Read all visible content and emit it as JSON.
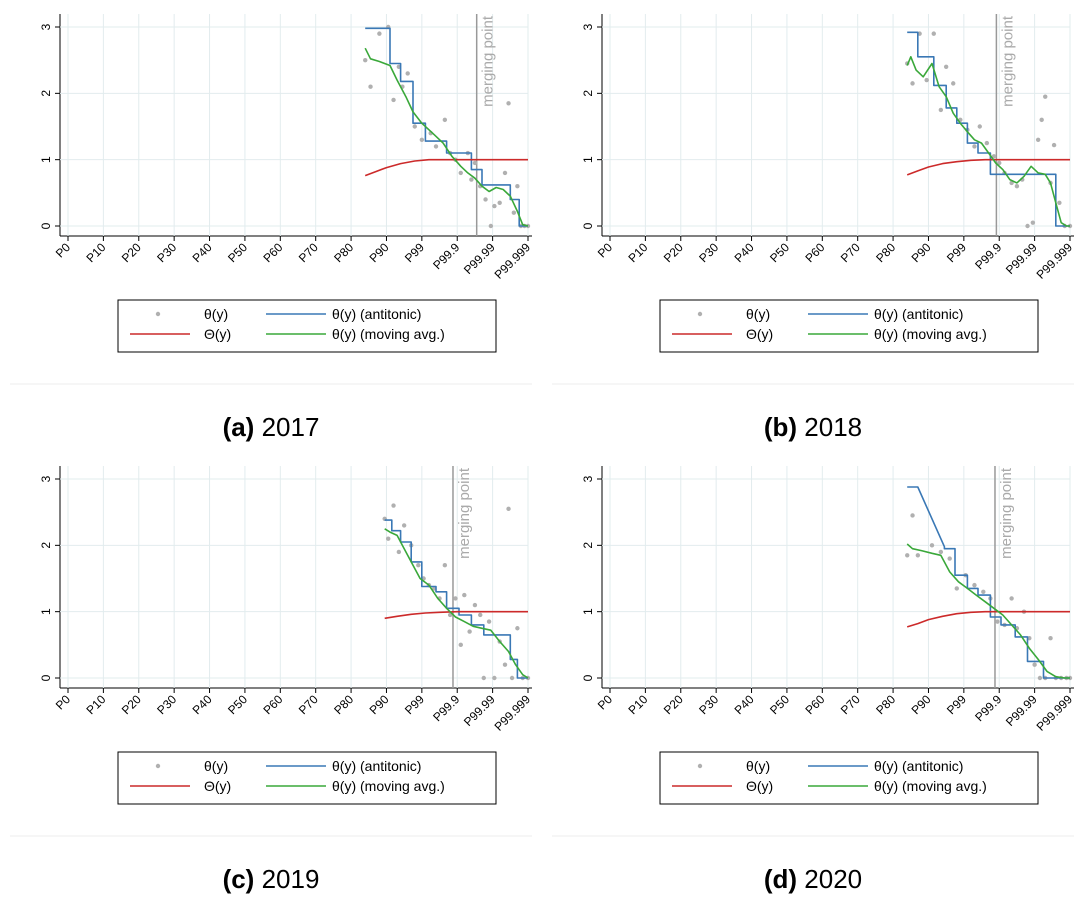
{
  "figure": {
    "legend_labels": [
      "θ(y)",
      "θ(y) (antitonic)",
      "Θ(y)",
      "θ(y) (moving avg.)"
    ],
    "merging_label": "merging point",
    "colors": {
      "points": "#b0b0b0",
      "antitonic": "#3a78b5",
      "theta_cap": "#cc2a2a",
      "moving": "#3aa83a",
      "grid": "#e2ecee",
      "merge_line": "#999999"
    }
  },
  "chart_data": [
    {
      "type": "line",
      "caption_letter": "(a)",
      "caption_year": "2017",
      "x_ticks": [
        "P0",
        "P10",
        "P20",
        "P30",
        "P40",
        "P50",
        "P60",
        "P70",
        "P80",
        "P90",
        "P99",
        "P99.9",
        "P99.99",
        "P99.999"
      ],
      "y_ticks": [
        "0",
        "1",
        "2",
        "3"
      ],
      "ylim": [
        0,
        3
      ],
      "merging_point": 11.55,
      "series": [
        {
          "name": "θ(y)",
          "style": "points",
          "x": [
            8.4,
            8.55,
            8.8,
            9.05,
            9.2,
            9.35,
            9.45,
            9.6,
            9.8,
            10.0,
            10.25,
            10.4,
            10.65,
            10.8,
            10.95,
            11.1,
            11.3,
            11.4,
            11.5,
            11.65,
            11.8,
            11.95,
            12.05,
            12.2,
            12.35,
            12.45,
            12.6,
            12.7,
            12.8,
            12.9,
            13.0
          ],
          "y": [
            2.5,
            2.1,
            2.9,
            3.0,
            1.9,
            2.4,
            2.1,
            2.3,
            1.5,
            1.3,
            1.4,
            1.2,
            1.6,
            1.1,
            1.0,
            0.8,
            1.1,
            0.7,
            0.95,
            0.6,
            0.4,
            0.0,
            0.3,
            0.35,
            0.8,
            1.85,
            0.2,
            0.6,
            0.0,
            0.0,
            0.0
          ]
        },
        {
          "name": "θ(y) (antitonic)",
          "style": "step",
          "x": [
            8.4,
            9.1,
            9.1,
            9.4,
            9.4,
            9.75,
            9.75,
            10.1,
            10.1,
            10.7,
            10.7,
            11.4,
            11.4,
            11.7,
            11.7,
            12.5,
            12.5,
            12.75,
            12.75,
            13.0
          ],
          "y": [
            2.98,
            2.98,
            2.45,
            2.45,
            2.18,
            2.18,
            1.55,
            1.55,
            1.28,
            1.28,
            1.1,
            1.1,
            0.85,
            0.85,
            0.62,
            0.62,
            0.4,
            0.4,
            0.0,
            0.0
          ]
        },
        {
          "name": "Θ(y)",
          "style": "line",
          "x": [
            8.4,
            8.7,
            9.0,
            9.4,
            9.8,
            10.2,
            10.6,
            11.0,
            11.5,
            12.0,
            12.5,
            13.0
          ],
          "y": [
            0.76,
            0.82,
            0.88,
            0.94,
            0.98,
            1.0,
            1.0,
            1.0,
            1.0,
            1.0,
            1.0,
            1.0
          ]
        },
        {
          "name": "θ(y) (moving avg.)",
          "style": "line",
          "x": [
            8.4,
            8.55,
            8.8,
            9.1,
            9.3,
            9.55,
            9.75,
            10.0,
            10.3,
            10.6,
            10.85,
            11.1,
            11.3,
            11.5,
            11.7,
            11.9,
            12.1,
            12.3,
            12.5,
            12.7,
            12.85,
            13.0
          ],
          "y": [
            2.68,
            2.52,
            2.48,
            2.42,
            2.2,
            1.95,
            1.72,
            1.55,
            1.4,
            1.25,
            1.05,
            0.9,
            0.8,
            0.72,
            0.6,
            0.52,
            0.58,
            0.55,
            0.45,
            0.22,
            0.02,
            0.0
          ]
        }
      ]
    },
    {
      "type": "line",
      "caption_letter": "(b)",
      "caption_year": "2018",
      "x_ticks": [
        "P0",
        "P10",
        "P20",
        "P30",
        "P40",
        "P50",
        "P60",
        "P70",
        "P80",
        "P90",
        "P99",
        "P99.9",
        "P99.99",
        "P99.999"
      ],
      "y_ticks": [
        "0",
        "1",
        "2",
        "3"
      ],
      "ylim": [
        0,
        3
      ],
      "merging_point": 10.92,
      "series": [
        {
          "name": "θ(y)",
          "style": "points",
          "x": [
            8.4,
            8.55,
            8.75,
            8.95,
            9.15,
            9.35,
            9.5,
            9.7,
            9.9,
            10.1,
            10.3,
            10.45,
            10.65,
            10.85,
            11.0,
            11.15,
            11.35,
            11.5,
            11.65,
            11.8,
            11.95,
            12.1,
            12.2,
            12.3,
            12.45,
            12.55,
            12.7,
            12.85,
            13.0
          ],
          "y": [
            2.45,
            2.15,
            2.9,
            2.2,
            2.9,
            1.75,
            2.4,
            2.15,
            1.6,
            1.45,
            1.2,
            1.5,
            1.25,
            1.05,
            0.95,
            0.8,
            0.65,
            0.6,
            0.7,
            0.0,
            0.05,
            1.3,
            1.6,
            1.95,
            0.65,
            1.22,
            0.35,
            0.0,
            0.0
          ]
        },
        {
          "name": "θ(y) (antitonic)",
          "style": "step",
          "x": [
            8.4,
            8.7,
            8.7,
            9.15,
            9.15,
            9.5,
            9.5,
            9.8,
            9.8,
            10.1,
            10.1,
            10.4,
            10.4,
            10.75,
            10.75,
            11.05,
            11.05,
            12.6,
            12.6,
            12.85,
            12.85,
            13.0
          ],
          "y": [
            2.92,
            2.92,
            2.55,
            2.55,
            2.12,
            2.12,
            1.78,
            1.78,
            1.55,
            1.55,
            1.25,
            1.25,
            1.1,
            1.1,
            0.78,
            0.78,
            0.78,
            0.78,
            0.0,
            0.0,
            0.0,
            0.0
          ]
        },
        {
          "name": "Θ(y)",
          "style": "line",
          "x": [
            8.4,
            8.7,
            9.0,
            9.4,
            9.8,
            10.2,
            10.6,
            11.0,
            11.5,
            12.0,
            12.5,
            13.0
          ],
          "y": [
            0.77,
            0.83,
            0.89,
            0.94,
            0.97,
            0.99,
            1.0,
            1.0,
            1.0,
            1.0,
            1.0,
            1.0
          ]
        },
        {
          "name": "θ(y) (moving avg.)",
          "style": "line",
          "x": [
            8.4,
            8.5,
            8.65,
            8.85,
            9.1,
            9.3,
            9.5,
            9.7,
            9.9,
            10.1,
            10.3,
            10.5,
            10.7,
            10.9,
            11.1,
            11.3,
            11.5,
            11.7,
            11.9,
            12.1,
            12.3,
            12.45,
            12.6,
            12.75,
            12.9,
            13.0
          ],
          "y": [
            2.42,
            2.55,
            2.35,
            2.25,
            2.45,
            2.1,
            1.95,
            1.7,
            1.55,
            1.42,
            1.3,
            1.25,
            1.1,
            0.95,
            0.85,
            0.7,
            0.65,
            0.75,
            0.9,
            0.8,
            0.78,
            0.65,
            0.35,
            0.05,
            0.0,
            0.0
          ]
        }
      ]
    },
    {
      "type": "line",
      "caption_letter": "(c)",
      "caption_year": "2019",
      "x_ticks": [
        "P0",
        "P10",
        "P20",
        "P30",
        "P40",
        "P50",
        "P60",
        "P70",
        "P80",
        "P90",
        "P99",
        "P99.9",
        "P99.99",
        "P99.999"
      ],
      "y_ticks": [
        "0",
        "1",
        "2",
        "3"
      ],
      "ylim": [
        0,
        3
      ],
      "merging_point": 10.88,
      "series": [
        {
          "name": "θ(y)",
          "style": "points",
          "x": [
            8.95,
            9.05,
            9.2,
            9.35,
            9.5,
            9.7,
            9.9,
            10.05,
            10.2,
            10.35,
            10.5,
            10.65,
            10.8,
            10.95,
            11.1,
            11.2,
            11.35,
            11.5,
            11.65,
            11.75,
            11.9,
            12.05,
            12.2,
            12.35,
            12.45,
            12.55,
            12.7,
            12.85,
            13.0
          ],
          "y": [
            2.4,
            2.1,
            2.6,
            1.9,
            2.3,
            2.0,
            1.7,
            1.5,
            1.4,
            1.35,
            1.2,
            1.7,
            0.95,
            1.2,
            0.5,
            1.25,
            0.7,
            1.1,
            0.95,
            0.0,
            0.85,
            0.0,
            0.55,
            0.2,
            2.55,
            0.0,
            0.75,
            0.0,
            0.0
          ]
        },
        {
          "name": "θ(y) (antitonic)",
          "style": "step",
          "x": [
            8.95,
            9.15,
            9.15,
            9.4,
            9.4,
            9.7,
            9.7,
            10.0,
            10.0,
            10.4,
            10.4,
            10.7,
            10.7,
            11.05,
            11.05,
            11.4,
            11.4,
            11.75,
            11.75,
            12.5,
            12.5,
            12.7,
            12.7,
            13.0
          ],
          "y": [
            2.38,
            2.38,
            2.22,
            2.22,
            2.05,
            2.05,
            1.75,
            1.75,
            1.38,
            1.38,
            1.3,
            1.3,
            1.05,
            1.05,
            0.95,
            0.95,
            0.8,
            0.8,
            0.65,
            0.65,
            0.28,
            0.28,
            0.0,
            0.0
          ]
        },
        {
          "name": "Θ(y)",
          "style": "line",
          "x": [
            8.95,
            9.3,
            9.7,
            10.1,
            10.5,
            11.0,
            11.5,
            12.0,
            12.5,
            13.0
          ],
          "y": [
            0.9,
            0.93,
            0.96,
            0.98,
            0.99,
            1.0,
            1.0,
            1.0,
            1.0,
            1.0
          ]
        },
        {
          "name": "θ(y) (moving avg.)",
          "style": "line",
          "x": [
            8.95,
            9.1,
            9.3,
            9.5,
            9.7,
            9.95,
            10.2,
            10.45,
            10.7,
            10.95,
            11.2,
            11.45,
            11.7,
            11.95,
            12.2,
            12.45,
            12.65,
            12.85,
            13.0
          ],
          "y": [
            2.25,
            2.2,
            2.15,
            1.95,
            1.75,
            1.5,
            1.4,
            1.2,
            1.05,
            0.92,
            0.85,
            0.78,
            0.75,
            0.72,
            0.55,
            0.4,
            0.2,
            0.05,
            0.0
          ]
        }
      ]
    },
    {
      "type": "line",
      "caption_letter": "(d)",
      "caption_year": "2020",
      "x_ticks": [
        "P0",
        "P10",
        "P20",
        "P30",
        "P40",
        "P50",
        "P60",
        "P70",
        "P80",
        "P90",
        "P99",
        "P99.9",
        "P99.99",
        "P99.999"
      ],
      "y_ticks": [
        "0",
        "1",
        "2",
        "3"
      ],
      "ylim": [
        0,
        3
      ],
      "merging_point": 10.88,
      "series": [
        {
          "name": "θ(y)",
          "style": "points",
          "x": [
            8.4,
            8.55,
            8.7,
            9.1,
            9.35,
            9.6,
            9.8,
            10.05,
            10.3,
            10.55,
            10.75,
            10.95,
            11.15,
            11.35,
            11.5,
            11.7,
            11.85,
            12.0,
            12.15,
            12.3,
            12.45,
            12.6,
            12.75,
            12.9,
            13.0
          ],
          "y": [
            1.85,
            2.45,
            1.85,
            2.0,
            1.9,
            1.8,
            1.35,
            1.55,
            1.4,
            1.3,
            1.2,
            0.85,
            0.8,
            1.2,
            0.75,
            1.0,
            0.6,
            0.2,
            0.0,
            0.0,
            0.6,
            0.0,
            0.0,
            0.0,
            0.0
          ]
        },
        {
          "name": "θ(y) (antitonic)",
          "style": "step",
          "x": [
            8.4,
            8.7,
            9.45,
            9.45,
            9.75,
            9.75,
            10.1,
            10.1,
            10.4,
            10.4,
            10.75,
            10.75,
            11.05,
            11.05,
            11.45,
            11.45,
            11.8,
            11.8,
            12.25,
            12.25,
            13.0
          ],
          "y": [
            2.88,
            2.88,
            1.98,
            1.95,
            1.95,
            1.55,
            1.55,
            1.35,
            1.35,
            1.25,
            1.25,
            0.92,
            0.92,
            0.8,
            0.8,
            0.62,
            0.62,
            0.25,
            0.25,
            0.0,
            0.0
          ]
        },
        {
          "name": "Θ(y)",
          "style": "line",
          "x": [
            8.4,
            8.7,
            9.0,
            9.4,
            9.8,
            10.2,
            10.6,
            11.0,
            11.5,
            12.0,
            12.5,
            13.0
          ],
          "y": [
            0.77,
            0.82,
            0.88,
            0.93,
            0.97,
            0.99,
            1.0,
            1.0,
            1.0,
            1.0,
            1.0,
            1.0
          ]
        },
        {
          "name": "θ(y) (moving avg.)",
          "style": "line",
          "x": [
            8.4,
            8.55,
            8.8,
            9.1,
            9.35,
            9.6,
            9.85,
            10.1,
            10.35,
            10.6,
            10.85,
            11.1,
            11.35,
            11.6,
            11.85,
            12.1,
            12.35,
            12.6,
            12.85,
            13.0
          ],
          "y": [
            2.02,
            1.95,
            1.92,
            1.88,
            1.85,
            1.6,
            1.45,
            1.35,
            1.25,
            1.15,
            1.05,
            0.95,
            0.8,
            0.65,
            0.45,
            0.28,
            0.1,
            0.02,
            0.0,
            0.0
          ]
        }
      ]
    }
  ]
}
